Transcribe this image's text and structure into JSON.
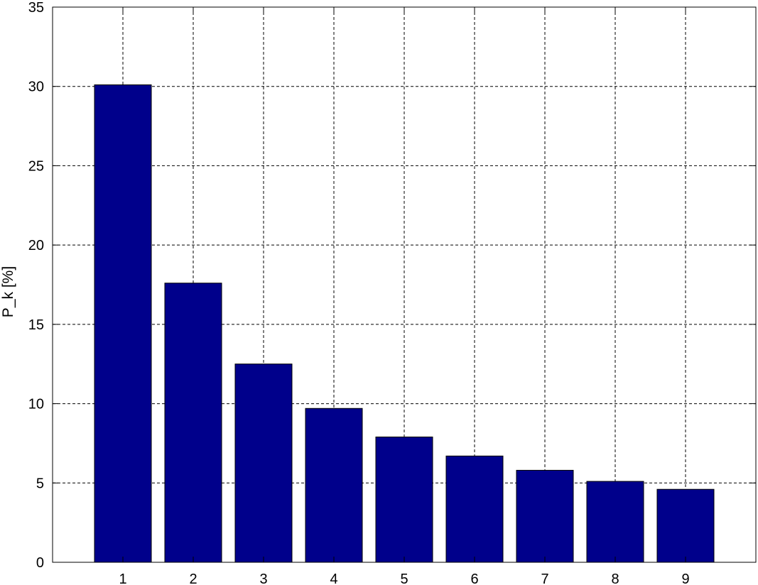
{
  "chart_data": {
    "type": "bar",
    "title": "",
    "xlabel": "",
    "ylabel": "P_k [%]",
    "categories": [
      "1",
      "2",
      "3",
      "4",
      "5",
      "6",
      "7",
      "8",
      "9"
    ],
    "values": [
      30.1,
      17.6,
      12.5,
      9.7,
      7.9,
      6.7,
      5.8,
      5.1,
      4.6
    ],
    "ylim": [
      0,
      35
    ],
    "yticks": [
      0,
      5,
      10,
      15,
      20,
      25,
      30,
      35
    ],
    "xlim": [
      0,
      10
    ],
    "grid": true,
    "bar_color": "#00008b"
  }
}
